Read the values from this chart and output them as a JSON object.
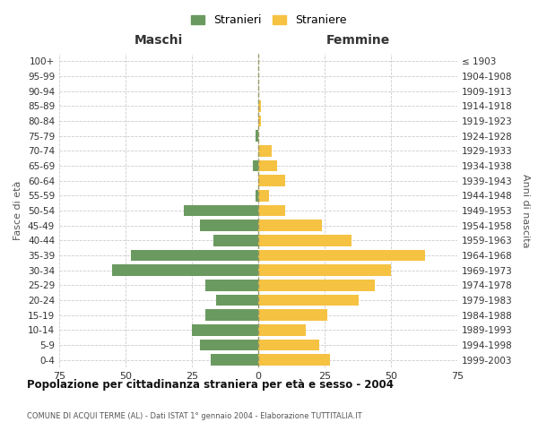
{
  "age_groups": [
    "0-4",
    "5-9",
    "10-14",
    "15-19",
    "20-24",
    "25-29",
    "30-34",
    "35-39",
    "40-44",
    "45-49",
    "50-54",
    "55-59",
    "60-64",
    "65-69",
    "70-74",
    "75-79",
    "80-84",
    "85-89",
    "90-94",
    "95-99",
    "100+"
  ],
  "birth_years": [
    "1999-2003",
    "1994-1998",
    "1989-1993",
    "1984-1988",
    "1979-1983",
    "1974-1978",
    "1969-1973",
    "1964-1968",
    "1959-1963",
    "1954-1958",
    "1949-1953",
    "1944-1948",
    "1939-1943",
    "1934-1938",
    "1929-1933",
    "1924-1928",
    "1919-1923",
    "1914-1918",
    "1909-1913",
    "1904-1908",
    "≤ 1903"
  ],
  "maschi": [
    18,
    22,
    25,
    20,
    16,
    20,
    55,
    48,
    17,
    22,
    28,
    1,
    0,
    2,
    0,
    1,
    0,
    0,
    0,
    0,
    0
  ],
  "femmine": [
    27,
    23,
    18,
    26,
    38,
    44,
    50,
    63,
    35,
    24,
    10,
    4,
    10,
    7,
    5,
    0,
    1,
    1,
    0,
    0,
    0
  ],
  "maschi_color": "#6a9a5f",
  "femmine_color": "#f5c242",
  "bar_height": 0.75,
  "xlim": 75,
  "title": "Popolazione per cittadinanza straniera per età e sesso - 2004",
  "subtitle": "COMUNE DI ACQUI TERME (AL) - Dati ISTAT 1° gennaio 2004 - Elaborazione TUTTITALIA.IT",
  "ylabel_left": "Fasce di età",
  "ylabel_right": "Anni di nascita",
  "xlabel_maschi": "Maschi",
  "xlabel_femmine": "Femmine",
  "legend_maschi": "Stranieri",
  "legend_femmine": "Straniere",
  "grid_color": "#cccccc",
  "bg_color": "#ffffff",
  "dashed_line_color": "#999966"
}
